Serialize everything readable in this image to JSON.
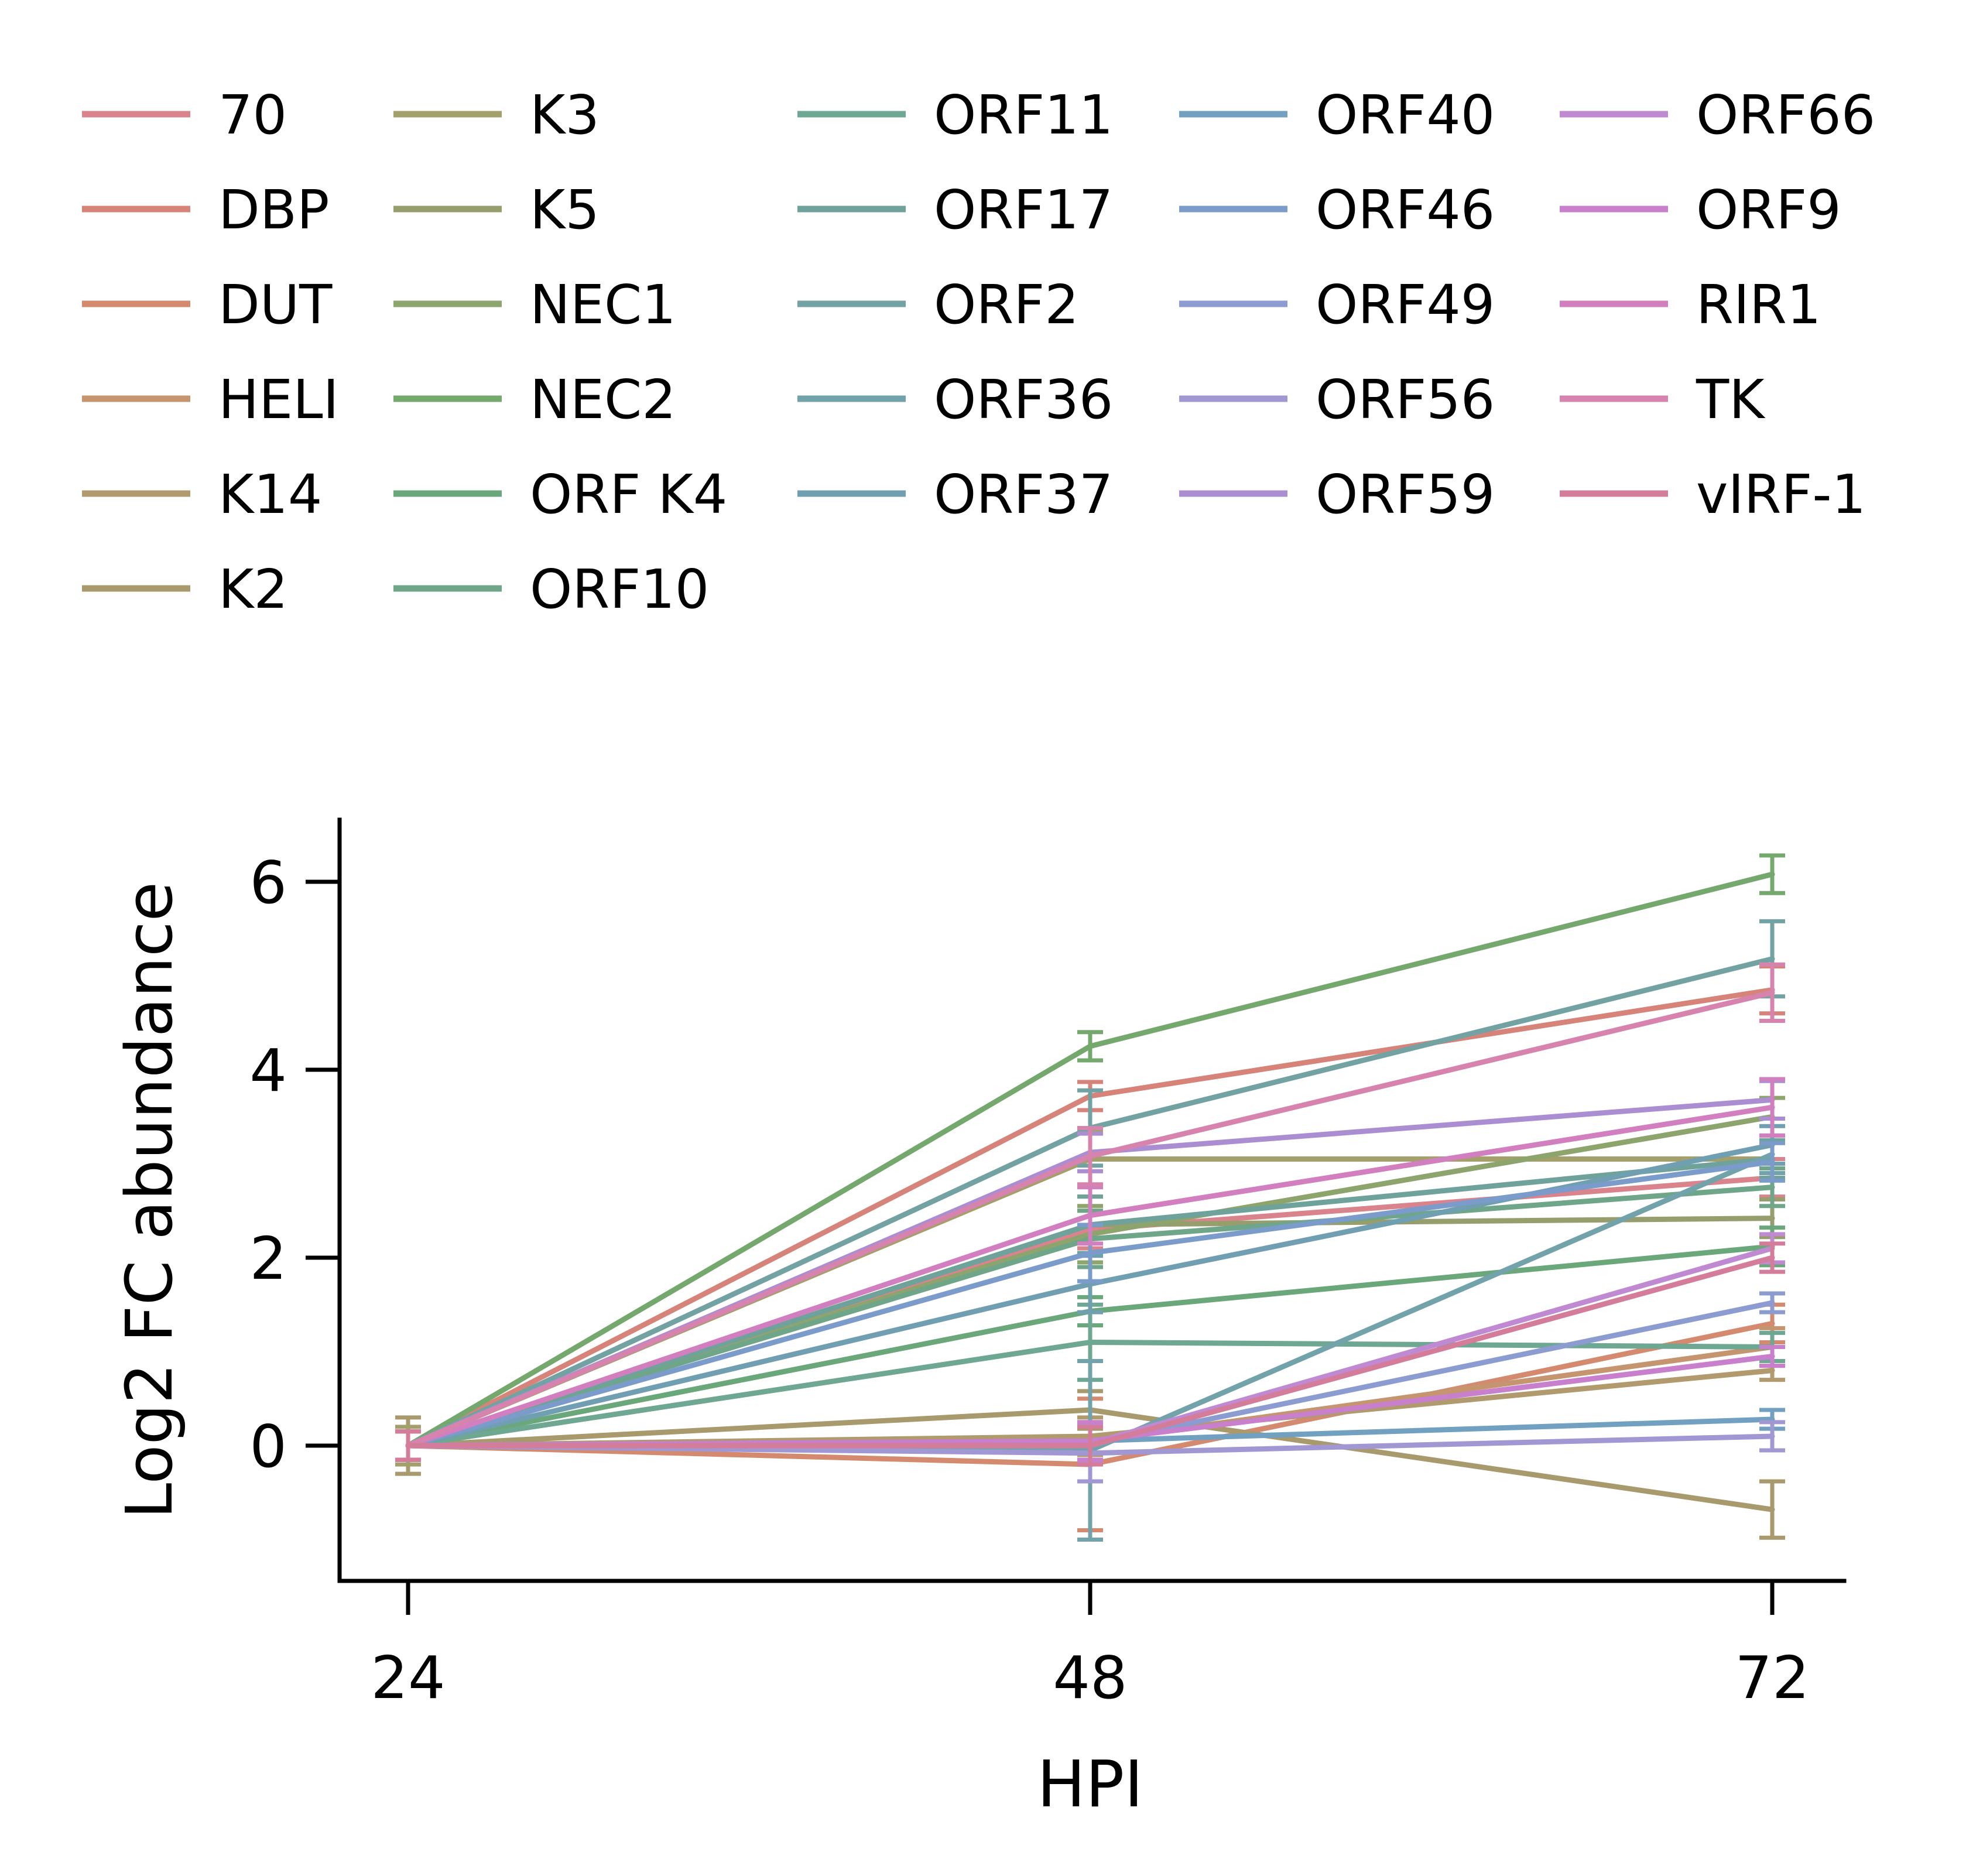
{
  "chart_data": {
    "type": "line",
    "title": "",
    "xlabel": "HPI",
    "ylabel": "Log2 FC abundance",
    "x": [
      24,
      48,
      72
    ],
    "x_ticks": [
      "24",
      "48",
      "72"
    ],
    "y_ticks": [
      "0",
      "2",
      "4",
      "6"
    ],
    "ylim": [
      -1.45,
      6.7
    ],
    "grid": false,
    "legend": {
      "position": "top",
      "columns": 5
    },
    "series": [
      {
        "name": "70",
        "color": "#d9848c",
        "values": [
          0,
          2.3,
          2.85
        ],
        "errors": [
          0.15,
          0.2,
          0.2
        ]
      },
      {
        "name": "DBP",
        "color": "#d6847a",
        "values": [
          0,
          3.72,
          4.85
        ],
        "errors": [
          0.15,
          0.15,
          0.25
        ]
      },
      {
        "name": "DUT",
        "color": "#d48a6e",
        "values": [
          0,
          -0.2,
          1.3
        ],
        "errors": [
          0.15,
          0.7,
          0.2
        ]
      },
      {
        "name": "HELI",
        "color": "#c4956e",
        "values": [
          0,
          0.05,
          1.05
        ],
        "errors": [
          0.15,
          0.2,
          0.2
        ]
      },
      {
        "name": "K14",
        "color": "#b09a6e",
        "values": [
          0,
          0.1,
          0.8
        ],
        "errors": [
          0.15,
          0.2,
          0.1
        ]
      },
      {
        "name": "K2",
        "color": "#a89a6c",
        "values": [
          0,
          0.38,
          -0.68
        ],
        "errors": [
          0.3,
          0.2,
          0.3
        ]
      },
      {
        "name": "K3",
        "color": "#a3a06c",
        "values": [
          0,
          3.05,
          3.05
        ],
        "errors": [
          0.2,
          0.3,
          0.2
        ]
      },
      {
        "name": "K5",
        "color": "#979e6e",
        "values": [
          0,
          2.35,
          2.42
        ],
        "errors": [
          0.15,
          0.3,
          0.2
        ]
      },
      {
        "name": "NEC1",
        "color": "#8da46c",
        "values": [
          0,
          2.25,
          3.5
        ],
        "errors": [
          0.15,
          0.3,
          0.2
        ]
      },
      {
        "name": "NEC2",
        "color": "#74a86c",
        "values": [
          0,
          4.25,
          6.08
        ],
        "errors": [
          0.15,
          0.15,
          0.2
        ]
      },
      {
        "name": "ORF K4",
        "color": "#6aa77a",
        "values": [
          0,
          1.43,
          2.12
        ],
        "errors": [
          0.15,
          0.15,
          0.2
        ]
      },
      {
        "name": "ORF10",
        "color": "#6fa68a",
        "values": [
          0,
          2.2,
          2.75
        ],
        "errors": [
          0.15,
          0.3,
          0.2
        ]
      },
      {
        "name": "ORF11",
        "color": "#6ea792",
        "values": [
          0,
          1.1,
          1.05
        ],
        "errors": [
          0.15,
          0.4,
          0.15
        ]
      },
      {
        "name": "ORF17",
        "color": "#6fa29a",
        "values": [
          0,
          2.35,
          3.05
        ],
        "errors": [
          0.15,
          0.3,
          0.2
        ]
      },
      {
        "name": "ORF2",
        "color": "#73a2a2",
        "values": [
          0,
          3.38,
          5.18
        ],
        "errors": [
          0.15,
          0.4,
          0.4
        ]
      },
      {
        "name": "ORF36",
        "color": "#73a3aa",
        "values": [
          0,
          -0.05,
          3.1
        ],
        "errors": [
          0.15,
          0.95,
          0.2
        ]
      },
      {
        "name": "ORF37",
        "color": "#6f9fb0",
        "values": [
          0,
          1.72,
          3.2
        ],
        "errors": [
          0.15,
          0.3,
          0.2
        ]
      },
      {
        "name": "ORF40",
        "color": "#72a0c0",
        "values": [
          0,
          0.05,
          0.28
        ],
        "errors": [
          0.15,
          0.2,
          0.1
        ]
      },
      {
        "name": "ORF46",
        "color": "#7b9cca",
        "values": [
          0,
          2.05,
          3.02
        ],
        "errors": [
          0.15,
          0.3,
          0.2
        ]
      },
      {
        "name": "ORF49",
        "color": "#8d9cd0",
        "values": [
          0,
          0.02,
          1.52
        ],
        "errors": [
          0.15,
          0.2,
          0.1
        ]
      },
      {
        "name": "ORF56",
        "color": "#a197d3",
        "values": [
          0,
          -0.08,
          0.1
        ],
        "errors": [
          0.15,
          0.3,
          0.15
        ]
      },
      {
        "name": "ORF59",
        "color": "#ab8ed2",
        "values": [
          0,
          3.12,
          3.68
        ],
        "errors": [
          0.15,
          0.2,
          0.2
        ]
      },
      {
        "name": "ORF66",
        "color": "#bf8ad2",
        "values": [
          0,
          0.02,
          2.1
        ],
        "errors": [
          0.15,
          0.2,
          0.15
        ]
      },
      {
        "name": "ORF9",
        "color": "#c87fcc",
        "values": [
          0,
          0.05,
          0.95
        ],
        "errors": [
          0.15,
          0.2,
          0.1
        ]
      },
      {
        "name": "RIR1",
        "color": "#d27fbf",
        "values": [
          0,
          2.45,
          3.6
        ],
        "errors": [
          0.15,
          0.3,
          0.3
        ]
      },
      {
        "name": "TK",
        "color": "#d684ae",
        "values": [
          0,
          3.08,
          4.82
        ],
        "errors": [
          0.15,
          0.3,
          0.3
        ]
      },
      {
        "name": "vIRF-1",
        "color": "#d37d9b",
        "values": [
          0,
          0.0,
          2.0
        ],
        "errors": [
          0.15,
          0.2,
          0.15
        ]
      }
    ]
  }
}
